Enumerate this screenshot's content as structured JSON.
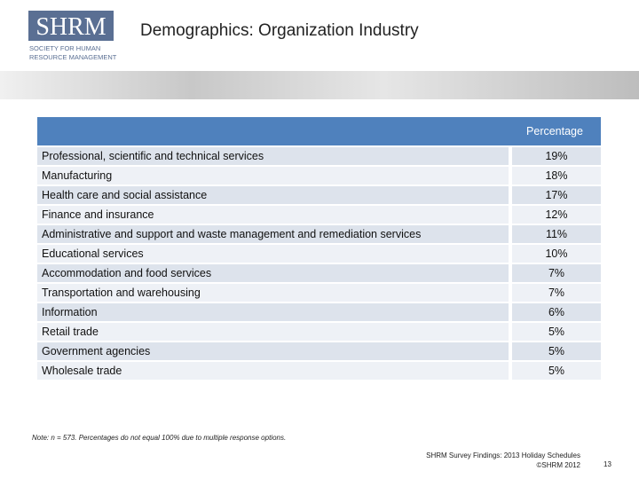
{
  "header": {
    "logo": {
      "mark": "SHRM",
      "line1": "SOCIETY FOR HUMAN",
      "line2": "RESOURCE MANAGEMENT"
    },
    "title": "Demographics: Organization Industry"
  },
  "table": {
    "columns": [
      "",
      "Percentage"
    ],
    "rows": [
      [
        "Professional, scientific and technical services",
        "19%"
      ],
      [
        "Manufacturing",
        "18%"
      ],
      [
        "Health care and social assistance",
        "17%"
      ],
      [
        "Finance and insurance",
        "12%"
      ],
      [
        "Administrative and support and waste management and remediation services",
        "11%"
      ],
      [
        "Educational services",
        "10%"
      ],
      [
        "Accommodation and food services",
        "7%"
      ],
      [
        "Transportation and warehousing",
        "7%"
      ],
      [
        "Information",
        "6%"
      ],
      [
        "Retail trade",
        "5%"
      ],
      [
        "Government agencies",
        "5%"
      ],
      [
        "Wholesale trade",
        "5%"
      ]
    ]
  },
  "note": "Note: n = 573. Percentages do not equal 100% due to multiple response options.",
  "footer": {
    "line1": "SHRM Survey Findings: 2013 Holiday Schedules",
    "line2": "©SHRM 2012",
    "page": "13"
  }
}
